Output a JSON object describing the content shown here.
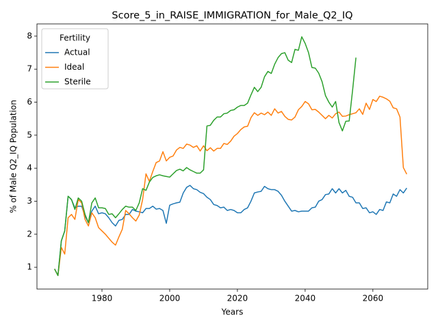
{
  "chart_data": {
    "type": "line",
    "title": "Score_5_in_RAISE_IMMIGRATION_for_Male_Q2_IQ",
    "xlabel": "Years",
    "ylabel": "% of Male Q2_IQ Population",
    "legend_title": "Fertility",
    "legend": "upper left",
    "grid": false,
    "xlim": [
      1960.8,
      2076.2
    ],
    "ylim": [
      0.34,
      8.37
    ],
    "xticks": [
      1980,
      2000,
      2020,
      2040,
      2060
    ],
    "yticks": [
      1,
      2,
      3,
      4,
      5,
      6,
      7,
      8
    ],
    "x": [
      1966,
      1967,
      1968,
      1969,
      1970,
      1971,
      1972,
      1973,
      1974,
      1975,
      1976,
      1977,
      1978,
      1979,
      1980,
      1981,
      1982,
      1983,
      1984,
      1985,
      1986,
      1987,
      1988,
      1989,
      1990,
      1991,
      1992,
      1993,
      1994,
      1995,
      1996,
      1997,
      1998,
      1999,
      2000,
      2001,
      2002,
      2003,
      2004,
      2005,
      2006,
      2007,
      2008,
      2009,
      2010,
      2011,
      2012,
      2013,
      2014,
      2015,
      2016,
      2017,
      2018,
      2019,
      2020,
      2021,
      2022,
      2023,
      2024,
      2025,
      2026,
      2027,
      2028,
      2029,
      2030,
      2031,
      2032,
      2033,
      2034,
      2035,
      2036,
      2037,
      2038,
      2039,
      2040,
      2041,
      2042,
      2043,
      2044,
      2045,
      2046,
      2047,
      2048,
      2049,
      2050,
      2051,
      2052,
      2053,
      2054,
      2055,
      2056,
      2057,
      2058,
      2059,
      2060,
      2061,
      2062,
      2063,
      2064,
      2065,
      2066,
      2067,
      2068,
      2069,
      2070
    ],
    "series": [
      {
        "name": "Actual",
        "color": "#1f77b4",
        "values": [
          0.95,
          0.75,
          1.8,
          2.1,
          3.15,
          3.05,
          2.8,
          2.85,
          2.85,
          2.55,
          2.35,
          2.7,
          2.85,
          2.62,
          2.65,
          2.62,
          2.5,
          2.35,
          2.25,
          2.42,
          2.45,
          2.6,
          2.6,
          2.75,
          2.7,
          2.68,
          2.65,
          2.78,
          2.78,
          2.85,
          2.76,
          2.78,
          2.72,
          2.33,
          2.88,
          2.92,
          2.95,
          2.97,
          3.25,
          3.42,
          3.48,
          3.38,
          3.35,
          3.27,
          3.23,
          3.12,
          3.05,
          2.9,
          2.87,
          2.8,
          2.82,
          2.72,
          2.75,
          2.72,
          2.65,
          2.65,
          2.75,
          2.8,
          3.0,
          3.25,
          3.28,
          3.3,
          3.45,
          3.38,
          3.35,
          3.35,
          3.3,
          3.18,
          3.0,
          2.85,
          2.7,
          2.72,
          2.68,
          2.7,
          2.7,
          2.7,
          2.8,
          2.82,
          3.0,
          3.05,
          3.2,
          3.22,
          3.38,
          3.25,
          3.38,
          3.25,
          3.33,
          3.15,
          3.12,
          2.95,
          2.95,
          2.78,
          2.8,
          2.65,
          2.68,
          2.6,
          2.75,
          2.72,
          2.98,
          2.95,
          3.22,
          3.15,
          3.35,
          3.25,
          3.4
        ]
      },
      {
        "name": "Ideal",
        "color": "#ff7f0e",
        "values": [
          0.95,
          0.75,
          1.6,
          1.4,
          2.5,
          2.6,
          2.45,
          3.05,
          2.95,
          2.45,
          2.25,
          2.65,
          2.5,
          2.2,
          2.1,
          2.0,
          1.88,
          1.76,
          1.67,
          1.92,
          2.15,
          2.72,
          2.62,
          2.5,
          2.4,
          2.58,
          3.05,
          3.83,
          3.6,
          3.9,
          4.17,
          4.22,
          4.5,
          4.22,
          4.33,
          4.37,
          4.55,
          4.63,
          4.6,
          4.73,
          4.7,
          4.63,
          4.68,
          4.52,
          4.68,
          4.53,
          4.62,
          4.52,
          4.6,
          4.6,
          4.75,
          4.72,
          4.82,
          4.97,
          5.05,
          5.17,
          5.25,
          5.27,
          5.53,
          5.68,
          5.6,
          5.67,
          5.62,
          5.7,
          5.6,
          5.8,
          5.67,
          5.72,
          5.57,
          5.48,
          5.46,
          5.55,
          5.77,
          5.87,
          6.02,
          5.95,
          5.77,
          5.78,
          5.7,
          5.6,
          5.5,
          5.6,
          5.52,
          5.65,
          5.7,
          5.57,
          5.58,
          5.62,
          5.65,
          5.68,
          5.8,
          5.63,
          5.97,
          5.78,
          6.08,
          6.02,
          6.18,
          6.15,
          6.1,
          6.03,
          5.83,
          5.8,
          5.55,
          4.02,
          3.82
        ]
      },
      {
        "name": "Sterile",
        "color": "#2ca02c",
        "values": [
          0.95,
          0.75,
          1.8,
          2.1,
          3.15,
          3.05,
          2.75,
          3.1,
          3.0,
          2.6,
          2.35,
          2.95,
          3.1,
          2.8,
          2.8,
          2.78,
          2.6,
          2.62,
          2.5,
          2.62,
          2.75,
          2.85,
          2.82,
          2.82,
          2.72,
          2.95,
          3.38,
          3.33,
          3.58,
          3.72,
          3.77,
          3.8,
          3.77,
          3.75,
          3.73,
          3.83,
          3.93,
          3.97,
          3.92,
          4.02,
          3.95,
          3.9,
          3.85,
          3.85,
          3.95,
          5.28,
          5.3,
          5.45,
          5.55,
          5.55,
          5.65,
          5.67,
          5.75,
          5.77,
          5.85,
          5.9,
          5.9,
          5.97,
          6.22,
          6.45,
          6.32,
          6.45,
          6.77,
          6.93,
          6.87,
          7.15,
          7.35,
          7.47,
          7.5,
          7.27,
          7.2,
          7.6,
          7.57,
          7.98,
          7.78,
          7.5,
          7.05,
          7.03,
          6.88,
          6.62,
          6.2,
          6.0,
          5.85,
          6.02,
          5.38,
          5.13,
          5.42,
          5.43,
          6.35,
          7.35,
          null,
          null,
          null,
          null,
          null,
          null,
          null,
          null,
          null,
          null,
          null,
          null,
          null,
          null,
          null
        ]
      }
    ]
  }
}
